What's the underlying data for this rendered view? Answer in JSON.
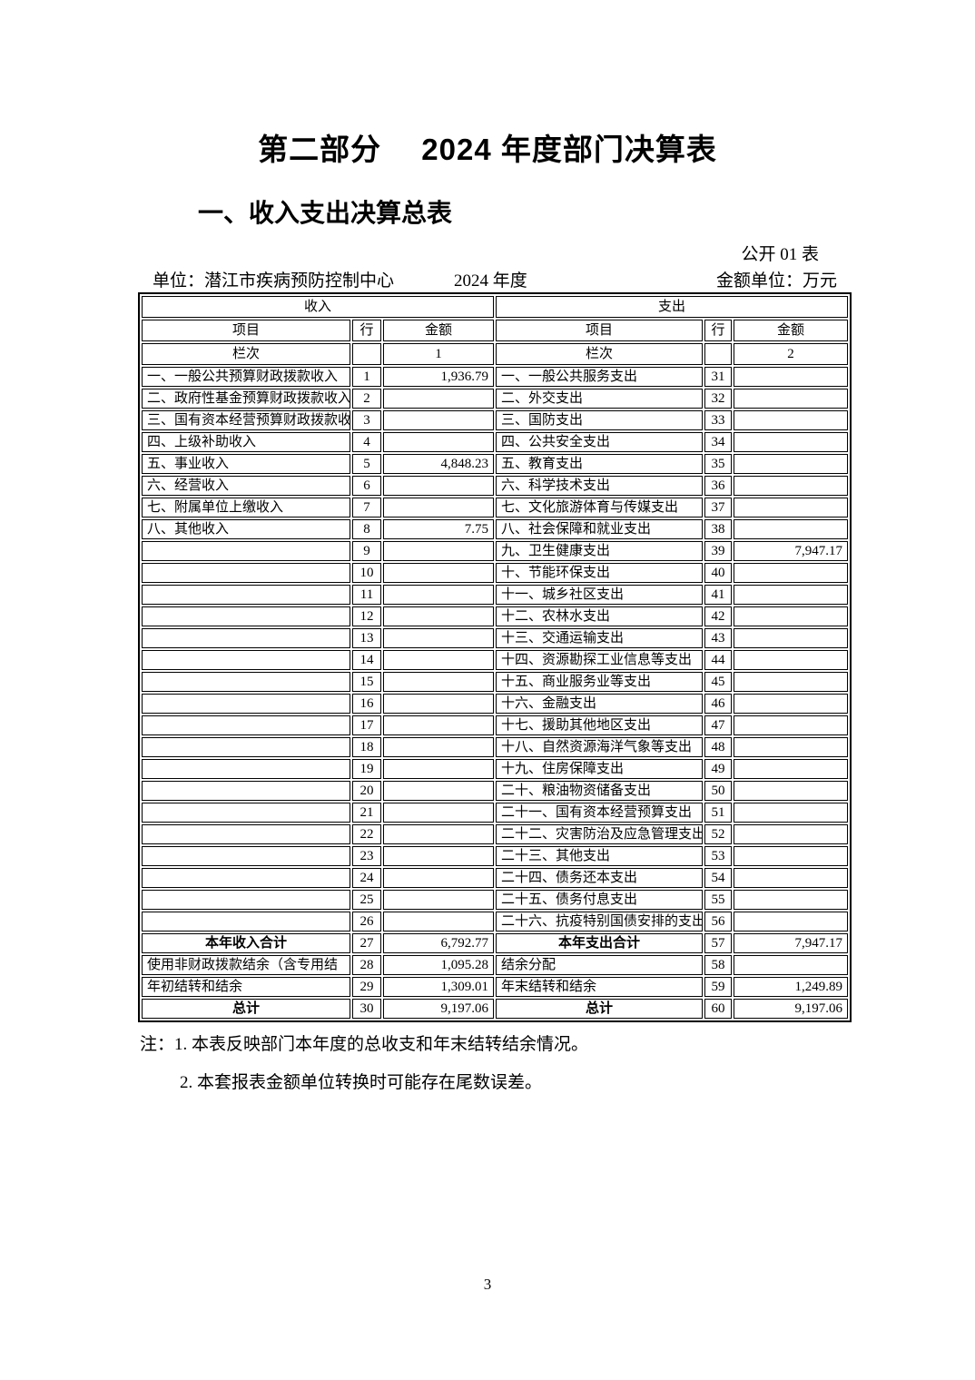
{
  "title": "第二部分　 2024 年度部门决算表",
  "subtitle": "一、收入支出决算总表",
  "form_label": "公开 01 表",
  "meta": {
    "unit": "单位：潜江市疾病预防控制中心",
    "period": "2024 年度",
    "amount_unit": "金额单位：万元"
  },
  "table": {
    "income_header": "收入",
    "expense_header": "支出",
    "col_headers": {
      "item": "项目",
      "line": "行",
      "amount": "金额"
    },
    "lanci": {
      "label": "栏次",
      "income_col_no": "1",
      "expense_col_no": "2"
    },
    "rows": [
      {
        "income_item": "一、一般公共预算财政拨款收入",
        "income_line": "1",
        "income_amount": "1,936.79",
        "expense_item": "一、一般公共服务支出",
        "expense_line": "31",
        "expense_amount": "",
        "emphasis": false
      },
      {
        "income_item": "二、政府性基金预算财政拨款收入",
        "income_line": "2",
        "income_amount": "",
        "expense_item": "二、外交支出",
        "expense_line": "32",
        "expense_amount": "",
        "emphasis": false
      },
      {
        "income_item": "三、国有资本经营预算财政拨款收",
        "income_line": "3",
        "income_amount": "",
        "expense_item": "三、国防支出",
        "expense_line": "33",
        "expense_amount": "",
        "emphasis": false
      },
      {
        "income_item": "四、上级补助收入",
        "income_line": "4",
        "income_amount": "",
        "expense_item": "四、公共安全支出",
        "expense_line": "34",
        "expense_amount": "",
        "emphasis": false
      },
      {
        "income_item": "五、事业收入",
        "income_line": "5",
        "income_amount": "4,848.23",
        "expense_item": "五、教育支出",
        "expense_line": "35",
        "expense_amount": "",
        "emphasis": false
      },
      {
        "income_item": "六、经营收入",
        "income_line": "6",
        "income_amount": "",
        "expense_item": "六、科学技术支出",
        "expense_line": "36",
        "expense_amount": "",
        "emphasis": false
      },
      {
        "income_item": "七、附属单位上缴收入",
        "income_line": "7",
        "income_amount": "",
        "expense_item": "七、文化旅游体育与传媒支出",
        "expense_line": "37",
        "expense_amount": "",
        "emphasis": false
      },
      {
        "income_item": "八、其他收入",
        "income_line": "8",
        "income_amount": "7.75",
        "expense_item": "八、社会保障和就业支出",
        "expense_line": "38",
        "expense_amount": "",
        "emphasis": false
      },
      {
        "income_item": "",
        "income_line": "9",
        "income_amount": "",
        "expense_item": "九、卫生健康支出",
        "expense_line": "39",
        "expense_amount": "7,947.17",
        "emphasis": false
      },
      {
        "income_item": "",
        "income_line": "10",
        "income_amount": "",
        "expense_item": "十、节能环保支出",
        "expense_line": "40",
        "expense_amount": "",
        "emphasis": false
      },
      {
        "income_item": "",
        "income_line": "11",
        "income_amount": "",
        "expense_item": "十一、城乡社区支出",
        "expense_line": "41",
        "expense_amount": "",
        "emphasis": false
      },
      {
        "income_item": "",
        "income_line": "12",
        "income_amount": "",
        "expense_item": "十二、农林水支出",
        "expense_line": "42",
        "expense_amount": "",
        "emphasis": false
      },
      {
        "income_item": "",
        "income_line": "13",
        "income_amount": "",
        "expense_item": "十三、交通运输支出",
        "expense_line": "43",
        "expense_amount": "",
        "emphasis": false
      },
      {
        "income_item": "",
        "income_line": "14",
        "income_amount": "",
        "expense_item": "十四、资源勘探工业信息等支出",
        "expense_line": "44",
        "expense_amount": "",
        "emphasis": false
      },
      {
        "income_item": "",
        "income_line": "15",
        "income_amount": "",
        "expense_item": "十五、商业服务业等支出",
        "expense_line": "45",
        "expense_amount": "",
        "emphasis": false
      },
      {
        "income_item": "",
        "income_line": "16",
        "income_amount": "",
        "expense_item": "十六、金融支出",
        "expense_line": "46",
        "expense_amount": "",
        "emphasis": false
      },
      {
        "income_item": "",
        "income_line": "17",
        "income_amount": "",
        "expense_item": "十七、援助其他地区支出",
        "expense_line": "47",
        "expense_amount": "",
        "emphasis": false
      },
      {
        "income_item": "",
        "income_line": "18",
        "income_amount": "",
        "expense_item": "十八、自然资源海洋气象等支出",
        "expense_line": "48",
        "expense_amount": "",
        "emphasis": false
      },
      {
        "income_item": "",
        "income_line": "19",
        "income_amount": "",
        "expense_item": "十九、住房保障支出",
        "expense_line": "49",
        "expense_amount": "",
        "emphasis": false
      },
      {
        "income_item": "",
        "income_line": "20",
        "income_amount": "",
        "expense_item": "二十、粮油物资储备支出",
        "expense_line": "50",
        "expense_amount": "",
        "emphasis": false
      },
      {
        "income_item": "",
        "income_line": "21",
        "income_amount": "",
        "expense_item": "二十一、国有资本经营预算支出",
        "expense_line": "51",
        "expense_amount": "",
        "emphasis": false
      },
      {
        "income_item": "",
        "income_line": "22",
        "income_amount": "",
        "expense_item": "二十二、灾害防治及应急管理支出",
        "expense_line": "52",
        "expense_amount": "",
        "emphasis": false
      },
      {
        "income_item": "",
        "income_line": "23",
        "income_amount": "",
        "expense_item": "二十三、其他支出",
        "expense_line": "53",
        "expense_amount": "",
        "emphasis": false
      },
      {
        "income_item": "",
        "income_line": "24",
        "income_amount": "",
        "expense_item": "二十四、债务还本支出",
        "expense_line": "54",
        "expense_amount": "",
        "emphasis": false
      },
      {
        "income_item": "",
        "income_line": "25",
        "income_amount": "",
        "expense_item": "二十五、债务付息支出",
        "expense_line": "55",
        "expense_amount": "",
        "emphasis": false
      },
      {
        "income_item": "",
        "income_line": "26",
        "income_amount": "",
        "expense_item": "二十六、抗疫特别国债安排的支出",
        "expense_line": "56",
        "expense_amount": "",
        "emphasis": false
      },
      {
        "income_item": "本年收入合计",
        "income_line": "27",
        "income_amount": "6,792.77",
        "expense_item": "本年支出合计",
        "expense_line": "57",
        "expense_amount": "7,947.17",
        "emphasis": true
      },
      {
        "income_item": "使用非财政拨款结余（含专用结",
        "income_line": "28",
        "income_amount": "1,095.28",
        "expense_item": "结余分配",
        "expense_line": "58",
        "expense_amount": "",
        "emphasis": false
      },
      {
        "income_item": "年初结转和结余",
        "income_line": "29",
        "income_amount": "1,309.01",
        "expense_item": "年末结转和结余",
        "expense_line": "59",
        "expense_amount": "1,249.89",
        "emphasis": false
      },
      {
        "income_item": "总计",
        "income_line": "30",
        "income_amount": "9,197.06",
        "expense_item": "总计",
        "expense_line": "60",
        "expense_amount": "9,197.06",
        "emphasis": true
      }
    ]
  },
  "notes": [
    "注：1. 本表反映部门本年度的总收支和年末结转结余情况。",
    "2. 本套报表金额单位转换时可能存在尾数误差。"
  ],
  "page_number": "3"
}
